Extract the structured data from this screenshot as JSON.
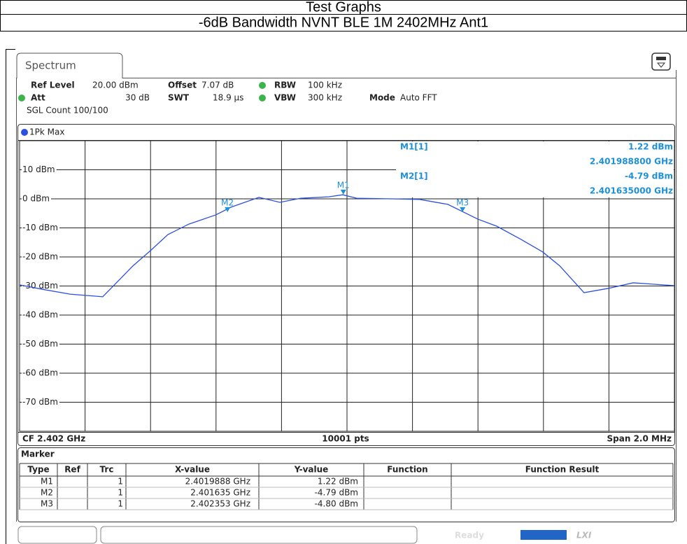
{
  "header": {
    "title": "Test Graphs",
    "subtitle": "-6dB Bandwidth NVNT BLE 1M 2402MHz Ant1"
  },
  "tab": "Spectrum",
  "settings": {
    "ref_level_label": "Ref Level",
    "ref_level": "20.00 dBm",
    "offset_label": "Offset",
    "offset": "7.07 dB",
    "rbw_label": "RBW",
    "rbw": "100 kHz",
    "att_label": "Att",
    "att": "30 dB",
    "swt_label": "SWT",
    "swt": "18.9 µs",
    "vbw_label": "VBW",
    "vbw": "300 kHz",
    "mode_label": "Mode",
    "mode": "Auto FFT",
    "count": "SGL Count 100/100"
  },
  "readout": {
    "m1_label": "M1[1]",
    "m1_y": "1.22 dBm",
    "m1_x": "2.401988800 GHz",
    "m2_label": "M2[1]",
    "m2_y": "-4.79 dBm",
    "m2_x": "2.401635000 GHz"
  },
  "chart_data": {
    "type": "line",
    "x": [
      2.401,
      2.401068,
      2.401154,
      2.401254,
      2.401293,
      2.401346,
      2.4014,
      2.401453,
      2.401517,
      2.4016,
      2.401645,
      2.401731,
      2.401795,
      2.401859,
      2.401944,
      2.401987,
      2.40203,
      2.402137,
      2.402222,
      2.402308,
      2.4024,
      2.402457,
      2.402532,
      2.402598,
      2.40265,
      2.402724,
      2.402799,
      2.402874,
      2.402938,
      2.403
    ],
    "series": [
      {
        "name": "1Pk Max",
        "color": "#2b4fe0",
        "values": [
          -29.6,
          -31.1,
          -32.8,
          -33.7,
          -29.2,
          -23.1,
          -17.8,
          -12.3,
          -8.7,
          -5.5,
          -2.9,
          0.5,
          -1.2,
          0.2,
          0.7,
          1.4,
          0.2,
          0,
          -0.2,
          -1.9,
          -7.0,
          -9.4,
          -14.0,
          -18.3,
          -23.1,
          -32.3,
          -30.8,
          -28.9,
          -29.4,
          -29.9
        ]
      }
    ],
    "markers": [
      {
        "name": "M1",
        "x": 2.4019888,
        "y": 1.22
      },
      {
        "name": "M2",
        "x": 2.401635,
        "y": -4.79
      },
      {
        "name": "M3",
        "x": 2.402353,
        "y": -4.8
      }
    ],
    "marker_color": "#1e90d8",
    "xlim": [
      2.401,
      2.403
    ],
    "xticks": [
      2.401,
      2.4012,
      2.4014,
      2.4016,
      2.4018,
      2.402,
      2.4022,
      2.4024,
      2.4026,
      2.4028,
      2.403
    ],
    "ylim": [
      -80,
      20
    ],
    "yticks": [
      {
        "value": 10,
        "label": "10 dBm"
      },
      {
        "value": 0,
        "label": "0 dBm"
      },
      {
        "value": -10,
        "label": "-10 dBm"
      },
      {
        "value": -20,
        "label": "-20 dBm"
      },
      {
        "value": -30,
        "label": "-30 dBm"
      },
      {
        "value": -40,
        "label": "-40 dBm"
      },
      {
        "value": -50,
        "label": "-50 dBm"
      },
      {
        "value": -60,
        "label": "-60 dBm"
      },
      {
        "value": -70,
        "label": "-70 dBm"
      }
    ],
    "grid": true
  },
  "footer": {
    "cf": "CF 2.402 GHz",
    "points": "10001 pts",
    "span": "Span 2.0 MHz"
  },
  "marker_table": {
    "title": "Marker",
    "columns": [
      "Type",
      "Ref",
      "Trc",
      "X-value",
      "Y-value",
      "Function",
      "Function Result"
    ],
    "rows": [
      {
        "trc": "1",
        "x": "2.4019888 GHz",
        "y": "1.22 dBm"
      },
      {
        "trc": "1",
        "x": "2.401635 GHz",
        "y": "-4.79 dBm"
      },
      {
        "trc": "1",
        "x": "2.402353 GHz",
        "y": "-4.80 dBm"
      }
    ]
  },
  "status": "Ready"
}
